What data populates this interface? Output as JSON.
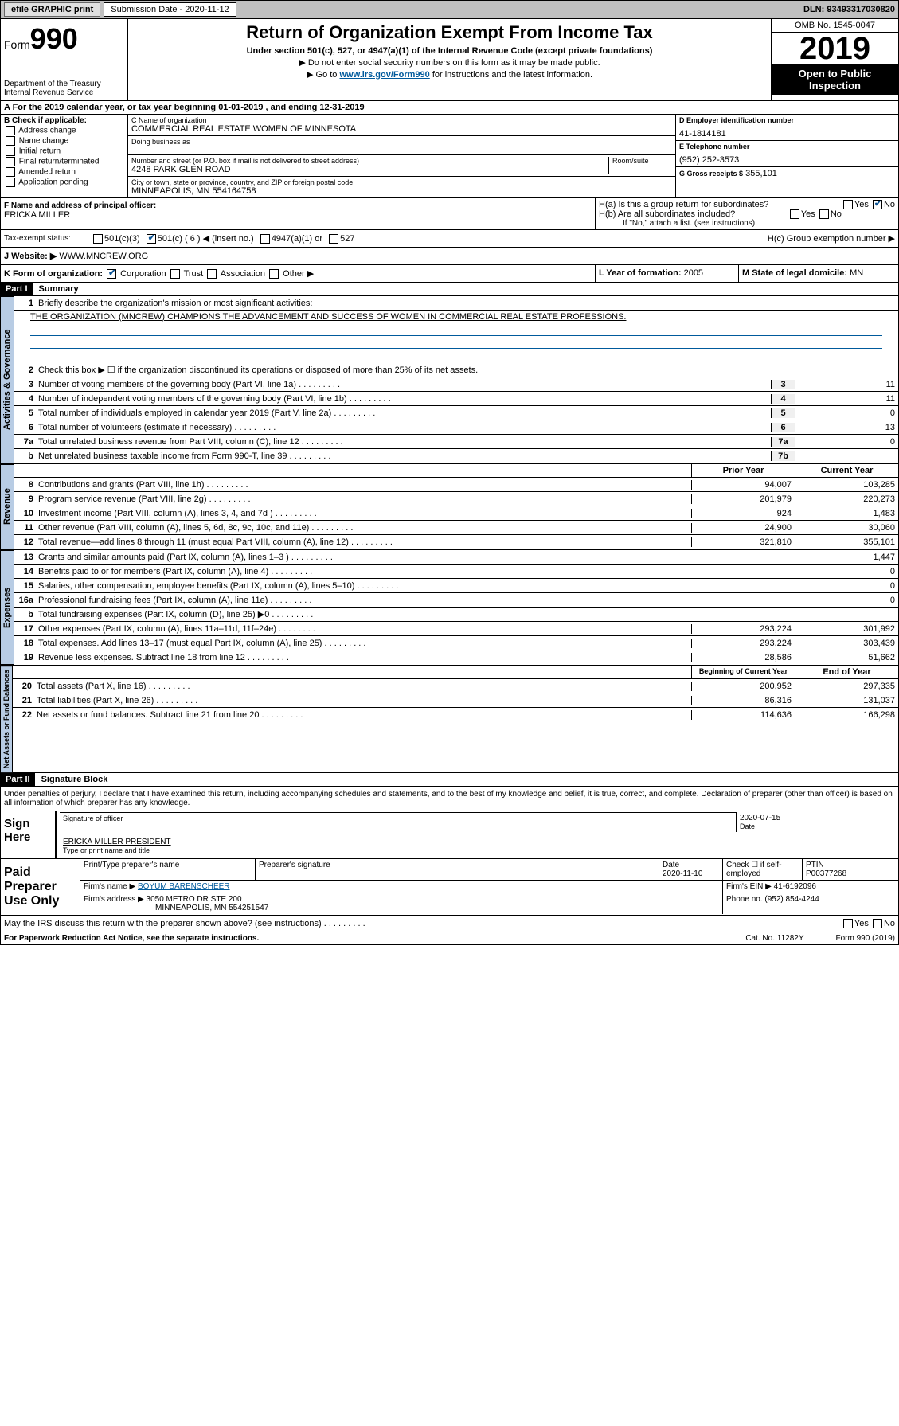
{
  "topbar": {
    "efile": "efile GRAPHIC print",
    "sub_label": "Submission Date - 2020-11-12",
    "dln": "DLN: 93493317030820"
  },
  "header": {
    "form": "Form",
    "num": "990",
    "dept": "Department of the Treasury",
    "irs": "Internal Revenue Service",
    "title": "Return of Organization Exempt From Income Tax",
    "under": "Under section 501(c), 527, or 4947(a)(1) of the Internal Revenue Code (except private foundations)",
    "note1": "▶ Do not enter social security numbers on this form as it may be made public.",
    "note2_pre": "▶ Go to ",
    "note2_link": "www.irs.gov/Form990",
    "note2_post": " for instructions and the latest information.",
    "omb": "OMB No. 1545-0047",
    "year": "2019",
    "open": "Open to Public Inspection"
  },
  "line_a": "A For the 2019 calendar year, or tax year beginning 01-01-2019    , and ending 12-31-2019",
  "box_b": {
    "title": "B Check if applicable:",
    "opts": [
      "Address change",
      "Name change",
      "Initial return",
      "Final return/terminated",
      "Amended return",
      "Application pending"
    ]
  },
  "box_c": {
    "name_label": "C Name of organization",
    "name": "COMMERCIAL REAL ESTATE WOMEN OF MINNESOTA",
    "dba_label": "Doing business as",
    "addr_label": "Number and street (or P.O. box if mail is not delivered to street address)",
    "room_label": "Room/suite",
    "addr": "4248 PARK GLEN ROAD",
    "city_label": "City or town, state or province, country, and ZIP or foreign postal code",
    "city": "MINNEAPOLIS, MN  554164758"
  },
  "box_d": {
    "label": "D Employer identification number",
    "ein": "41-1814181",
    "tel_label": "E Telephone number",
    "tel": "(952) 252-3573",
    "gross_label": "G Gross receipts $",
    "gross": "355,101"
  },
  "box_f": {
    "label": "F  Name and address of principal officer:",
    "name": "ERICKA MILLER"
  },
  "box_h": {
    "a": "H(a)  Is this a group return for subordinates?",
    "b": "H(b)  Are all subordinates included?",
    "b_note": "If \"No,\" attach a list. (see instructions)",
    "c": "H(c)  Group exemption number ▶",
    "yes": "Yes",
    "no": "No"
  },
  "line_i": {
    "label": "Tax-exempt status:",
    "c3": "501(c)(3)",
    "c": "501(c) ( 6 ) ◀ (insert no.)",
    "a1": "4947(a)(1) or",
    "s527": "527"
  },
  "line_j": {
    "label": "J Website: ▶",
    "val": "WWW.MNCREW.ORG"
  },
  "line_k": {
    "label": "K Form of organization:",
    "corp": "Corporation",
    "trust": "Trust",
    "assoc": "Association",
    "other": "Other ▶"
  },
  "line_l": {
    "label": "L Year of formation:",
    "val": "2005"
  },
  "line_m": {
    "label": "M State of legal domicile:",
    "val": "MN"
  },
  "part1": {
    "label": "Part I",
    "title": "Summary",
    "vtab1": "Activities & Governance",
    "vtab2": "Revenue",
    "vtab3": "Expenses",
    "vtab4": "Net Assets or Fund Balances",
    "l1": "Briefly describe the organization's mission or most significant activities:",
    "mission": "THE ORGANIZATION (MNCREW) CHAMPIONS THE ADVANCEMENT AND SUCCESS OF WOMEN IN COMMERCIAL REAL ESTATE PROFESSIONS.",
    "l2": "Check this box ▶ ☐  if the organization discontinued its operations or disposed of more than 25% of its net assets.",
    "lines_gov": [
      {
        "n": "3",
        "d": "Number of voting members of the governing body (Part VI, line 1a)",
        "box": "3",
        "v": "11"
      },
      {
        "n": "4",
        "d": "Number of independent voting members of the governing body (Part VI, line 1b)",
        "box": "4",
        "v": "11"
      },
      {
        "n": "5",
        "d": "Total number of individuals employed in calendar year 2019 (Part V, line 2a)",
        "box": "5",
        "v": "0"
      },
      {
        "n": "6",
        "d": "Total number of volunteers (estimate if necessary)",
        "box": "6",
        "v": "13"
      },
      {
        "n": "7a",
        "d": "Total unrelated business revenue from Part VIII, column (C), line 12",
        "box": "7a",
        "v": "0"
      },
      {
        "n": "b",
        "d": "Net unrelated business taxable income from Form 990-T, line 39",
        "box": "7b",
        "v": ""
      }
    ],
    "prior": "Prior Year",
    "current": "Current Year",
    "lines_rev": [
      {
        "n": "8",
        "d": "Contributions and grants (Part VIII, line 1h)",
        "p": "94,007",
        "c": "103,285"
      },
      {
        "n": "9",
        "d": "Program service revenue (Part VIII, line 2g)",
        "p": "201,979",
        "c": "220,273"
      },
      {
        "n": "10",
        "d": "Investment income (Part VIII, column (A), lines 3, 4, and 7d )",
        "p": "924",
        "c": "1,483"
      },
      {
        "n": "11",
        "d": "Other revenue (Part VIII, column (A), lines 5, 6d, 8c, 9c, 10c, and 11e)",
        "p": "24,900",
        "c": "30,060"
      },
      {
        "n": "12",
        "d": "Total revenue—add lines 8 through 11 (must equal Part VIII, column (A), line 12)",
        "p": "321,810",
        "c": "355,101"
      }
    ],
    "lines_exp": [
      {
        "n": "13",
        "d": "Grants and similar amounts paid (Part IX, column (A), lines 1–3 )",
        "p": "",
        "c": "1,447"
      },
      {
        "n": "14",
        "d": "Benefits paid to or for members (Part IX, column (A), line 4)",
        "p": "",
        "c": "0"
      },
      {
        "n": "15",
        "d": "Salaries, other compensation, employee benefits (Part IX, column (A), lines 5–10)",
        "p": "",
        "c": "0"
      },
      {
        "n": "16a",
        "d": "Professional fundraising fees (Part IX, column (A), line 11e)",
        "p": "",
        "c": "0"
      },
      {
        "n": "b",
        "d": "Total fundraising expenses (Part IX, column (D), line 25) ▶0",
        "p": "grey",
        "c": "grey"
      },
      {
        "n": "17",
        "d": "Other expenses (Part IX, column (A), lines 11a–11d, 11f–24e)",
        "p": "293,224",
        "c": "301,992"
      },
      {
        "n": "18",
        "d": "Total expenses. Add lines 13–17 (must equal Part IX, column (A), line 25)",
        "p": "293,224",
        "c": "303,439"
      },
      {
        "n": "19",
        "d": "Revenue less expenses. Subtract line 18 from line 12",
        "p": "28,586",
        "c": "51,662"
      }
    ],
    "beg": "Beginning of Current Year",
    "end": "End of Year",
    "lines_net": [
      {
        "n": "20",
        "d": "Total assets (Part X, line 16)",
        "p": "200,952",
        "c": "297,335"
      },
      {
        "n": "21",
        "d": "Total liabilities (Part X, line 26)",
        "p": "86,316",
        "c": "131,037"
      },
      {
        "n": "22",
        "d": "Net assets or fund balances. Subtract line 21 from line 20",
        "p": "114,636",
        "c": "166,298"
      }
    ]
  },
  "part2": {
    "label": "Part II",
    "title": "Signature Block",
    "decl": "Under penalties of perjury, I declare that I have examined this return, including accompanying schedules and statements, and to the best of my knowledge and belief, it is true, correct, and complete. Declaration of preparer (other than officer) is based on all information of which preparer has any knowledge.",
    "sign_here": "Sign Here",
    "sig_officer": "Signature of officer",
    "sig_date": "2020-07-15",
    "date_label": "Date",
    "sig_name": "ERICKA MILLER  PRESIDENT",
    "type_name": "Type or print name and title",
    "paid": "Paid Preparer Use Only",
    "prep_name_label": "Print/Type preparer's name",
    "prep_sig_label": "Preparer's signature",
    "prep_date": "2020-11-10",
    "check_self": "Check ☐ if self-employed",
    "ptin_label": "PTIN",
    "ptin": "P00377268",
    "firm_name_label": "Firm's name    ▶",
    "firm_name": "BOYUM BARENSCHEER",
    "firm_ein_label": "Firm's EIN ▶",
    "firm_ein": "41-6192096",
    "firm_addr_label": "Firm's address ▶",
    "firm_addr": "3050 METRO DR STE 200",
    "firm_city": "MINNEAPOLIS, MN  554251547",
    "phone_label": "Phone no.",
    "phone": "(952) 854-4244",
    "discuss": "May the IRS discuss this return with the preparer shown above? (see instructions)"
  },
  "footer": {
    "pra": "For Paperwork Reduction Act Notice, see the separate instructions.",
    "cat": "Cat. No. 11282Y",
    "form": "Form 990 (2019)"
  }
}
